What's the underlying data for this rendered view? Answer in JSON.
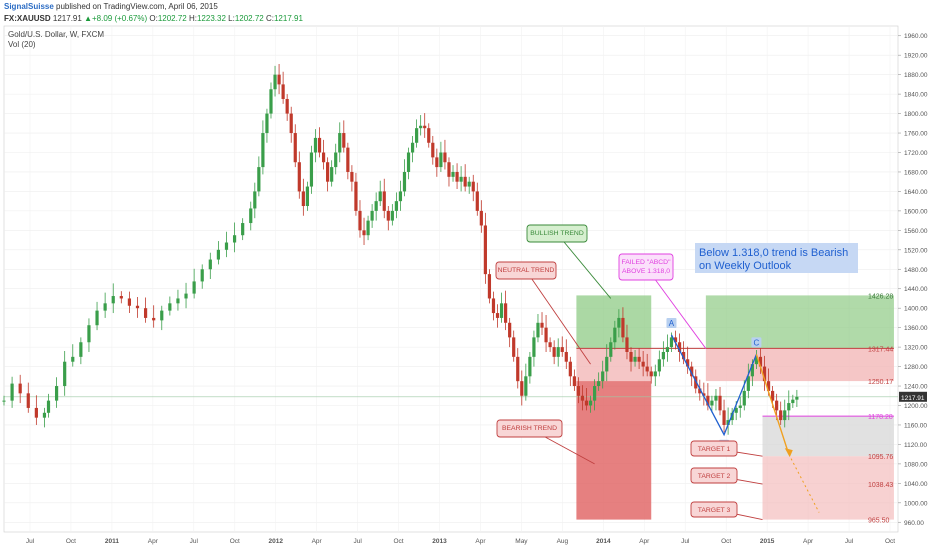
{
  "header": {
    "publisher": "SignalSuisse",
    "published_text": "published on TradingView.com, April 06, 2015",
    "symbol": "FX:XAUUSD",
    "last": "1217.91",
    "change": "+8.09 (+0.67%)",
    "open_label": "O:",
    "open": "1202.72",
    "high_label": "H:",
    "high": "1223.32",
    "low_label": "L:",
    "low": "1202.72",
    "close_label": "C:",
    "close": "1217.91"
  },
  "legend": {
    "title": "Gold/U.S. Dollar, W, FXCM",
    "volume": "Vol (20)"
  },
  "colors": {
    "up": "#3a9e4a",
    "down": "#c0392b",
    "green_zone": "#8fcb85",
    "red_zone": "#f3b8b8",
    "dark_red_zone": "#e06060",
    "grey_zone": "#d9d9d9",
    "magenta": "#e040e0",
    "blue": "#2060d0",
    "orange": "#f0a020"
  },
  "chart_data": {
    "type": "candlestick",
    "title": "Gold/U.S. Dollar, W, FXCM",
    "ylim": [
      940,
      1980
    ],
    "y_ticks": [
      "1960.00",
      "1920.00",
      "1880.00",
      "1840.00",
      "1800.00",
      "1760.00",
      "1720.00",
      "1680.00",
      "1640.00",
      "1600.00",
      "1560.00",
      "1520.00",
      "1480.00",
      "1440.00",
      "1400.00",
      "1360.00",
      "1320.00",
      "1280.00",
      "1240.00",
      "1200.00",
      "1160.00",
      "1120.00",
      "1080.00",
      "1040.00",
      "1000.00",
      "960.00"
    ],
    "x_ticks": [
      "Jul",
      "Oct",
      "2011",
      "Apr",
      "Jul",
      "Oct",
      "2012",
      "Apr",
      "Jul",
      "Oct",
      "2013",
      "Apr",
      "May",
      "Aug",
      "2014",
      "Apr",
      "Jul",
      "Oct",
      "2015",
      "Apr",
      "Jul",
      "Oct"
    ],
    "price_path": [
      [
        0,
        1210
      ],
      [
        4,
        1245
      ],
      [
        8,
        1225
      ],
      [
        12,
        1195
      ],
      [
        16,
        1175
      ],
      [
        20,
        1185
      ],
      [
        22,
        1210
      ],
      [
        26,
        1240
      ],
      [
        30,
        1290
      ],
      [
        34,
        1300
      ],
      [
        38,
        1330
      ],
      [
        42,
        1365
      ],
      [
        46,
        1395
      ],
      [
        50,
        1410
      ],
      [
        54,
        1425
      ],
      [
        58,
        1420
      ],
      [
        62,
        1405
      ],
      [
        66,
        1400
      ],
      [
        70,
        1380
      ],
      [
        74,
        1375
      ],
      [
        78,
        1395
      ],
      [
        82,
        1410
      ],
      [
        86,
        1420
      ],
      [
        90,
        1430
      ],
      [
        94,
        1455
      ],
      [
        98,
        1480
      ],
      [
        102,
        1500
      ],
      [
        106,
        1520
      ],
      [
        110,
        1535
      ],
      [
        114,
        1550
      ],
      [
        118,
        1575
      ],
      [
        122,
        1605
      ],
      [
        124,
        1640
      ],
      [
        126,
        1690
      ],
      [
        128,
        1760
      ],
      [
        130,
        1800
      ],
      [
        132,
        1850
      ],
      [
        134,
        1880
      ],
      [
        136,
        1860
      ],
      [
        138,
        1830
      ],
      [
        140,
        1800
      ],
      [
        142,
        1760
      ],
      [
        144,
        1700
      ],
      [
        146,
        1640
      ],
      [
        148,
        1610
      ],
      [
        150,
        1650
      ],
      [
        152,
        1720
      ],
      [
        154,
        1750
      ],
      [
        156,
        1720
      ],
      [
        158,
        1700
      ],
      [
        160,
        1660
      ],
      [
        162,
        1690
      ],
      [
        164,
        1720
      ],
      [
        166,
        1760
      ],
      [
        168,
        1730
      ],
      [
        170,
        1680
      ],
      [
        172,
        1660
      ],
      [
        174,
        1600
      ],
      [
        176,
        1560
      ],
      [
        178,
        1550
      ],
      [
        180,
        1580
      ],
      [
        182,
        1600
      ],
      [
        184,
        1620
      ],
      [
        186,
        1640
      ],
      [
        188,
        1600
      ],
      [
        190,
        1580
      ],
      [
        192,
        1600
      ],
      [
        194,
        1620
      ],
      [
        196,
        1640
      ],
      [
        198,
        1680
      ],
      [
        200,
        1720
      ],
      [
        202,
        1740
      ],
      [
        204,
        1770
      ],
      [
        206,
        1775
      ],
      [
        208,
        1770
      ],
      [
        210,
        1740
      ],
      [
        212,
        1710
      ],
      [
        214,
        1690
      ],
      [
        216,
        1720
      ],
      [
        218,
        1700
      ],
      [
        220,
        1670
      ],
      [
        222,
        1680
      ],
      [
        224,
        1660
      ],
      [
        226,
        1670
      ],
      [
        228,
        1650
      ],
      [
        230,
        1660
      ],
      [
        232,
        1640
      ],
      [
        234,
        1600
      ],
      [
        236,
        1570
      ],
      [
        238,
        1470
      ],
      [
        240,
        1420
      ],
      [
        242,
        1390
      ],
      [
        244,
        1380
      ],
      [
        246,
        1410
      ],
      [
        248,
        1370
      ],
      [
        250,
        1340
      ],
      [
        252,
        1300
      ],
      [
        254,
        1250
      ],
      [
        256,
        1220
      ],
      [
        258,
        1260
      ],
      [
        260,
        1300
      ],
      [
        262,
        1340
      ],
      [
        264,
        1370
      ],
      [
        266,
        1360
      ],
      [
        268,
        1330
      ],
      [
        270,
        1320
      ],
      [
        272,
        1300
      ],
      [
        274,
        1320
      ],
      [
        276,
        1310
      ],
      [
        278,
        1290
      ],
      [
        280,
        1260
      ],
      [
        282,
        1240
      ],
      [
        284,
        1220
      ],
      [
        286,
        1210
      ],
      [
        288,
        1200
      ],
      [
        290,
        1210
      ],
      [
        292,
        1240
      ],
      [
        294,
        1250
      ],
      [
        296,
        1270
      ],
      [
        298,
        1300
      ],
      [
        300,
        1330
      ],
      [
        302,
        1360
      ],
      [
        304,
        1380
      ],
      [
        306,
        1340
      ],
      [
        308,
        1310
      ],
      [
        310,
        1290
      ],
      [
        312,
        1300
      ],
      [
        314,
        1290
      ],
      [
        316,
        1280
      ],
      [
        318,
        1270
      ],
      [
        320,
        1260
      ],
      [
        322,
        1270
      ],
      [
        324,
        1295
      ],
      [
        326,
        1310
      ],
      [
        328,
        1320
      ],
      [
        330,
        1340
      ],
      [
        332,
        1330
      ],
      [
        334,
        1310
      ],
      [
        336,
        1295
      ],
      [
        338,
        1280
      ],
      [
        340,
        1260
      ],
      [
        342,
        1235
      ],
      [
        344,
        1225
      ],
      [
        346,
        1220
      ],
      [
        348,
        1200
      ],
      [
        350,
        1210
      ],
      [
        352,
        1220
      ],
      [
        354,
        1190
      ],
      [
        356,
        1160
      ],
      [
        358,
        1170
      ],
      [
        360,
        1185
      ],
      [
        362,
        1195
      ],
      [
        364,
        1200
      ],
      [
        366,
        1230
      ],
      [
        368,
        1260
      ],
      [
        370,
        1285
      ],
      [
        372,
        1300
      ],
      [
        374,
        1280
      ],
      [
        376,
        1250
      ],
      [
        378,
        1230
      ],
      [
        380,
        1210
      ],
      [
        382,
        1190
      ],
      [
        384,
        1170
      ],
      [
        386,
        1190
      ],
      [
        388,
        1205
      ],
      [
        390,
        1212
      ],
      [
        392,
        1218
      ]
    ],
    "levels": [
      {
        "label": "1426.28",
        "value": 1426.28
      },
      {
        "label": "1317.44",
        "value": 1317.44
      },
      {
        "label": "1250.17",
        "value": 1250.17
      },
      {
        "label": "1178.28",
        "value": 1178.28
      },
      {
        "label": "1095.76",
        "value": 1095.76
      },
      {
        "label": "1038.43",
        "value": 1038.43
      },
      {
        "label": "965.50",
        "value": 965.5
      }
    ],
    "current_price": "1217.91",
    "annotations": {
      "bullish": "BULLISH TREND",
      "neutral": "NEUTRAL TREND",
      "bearish": "BEARISH TREND",
      "failed": "FAILED \"ABCD\"",
      "above": "ABOVE 1.318,0",
      "headline_1": "Below 1.318,0 trend is Bearish",
      "headline_2": "on Weekly Outlook",
      "point_a": "A",
      "point_b": "B",
      "point_c": "C",
      "target_1": "TARGET 1",
      "target_2": "TARGET 2",
      "target_3": "TARGET 3"
    }
  }
}
